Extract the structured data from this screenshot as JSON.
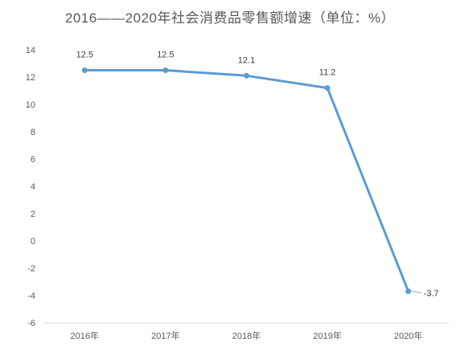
{
  "chart_data": {
    "type": "line",
    "title": "2016——2020年社会消费品零售额增速（单位：%）",
    "xlabel": "",
    "ylabel": "",
    "categories": [
      "2016年",
      "2017年",
      "2018年",
      "2019年",
      "2020年"
    ],
    "series": [
      {
        "values": [
          12.5,
          12.5,
          12.1,
          11.2,
          -3.7
        ],
        "data_labels": [
          "12.5",
          "12.5",
          "12.1",
          "11.2",
          "-3.7"
        ]
      }
    ],
    "ylim": [
      -6,
      14
    ],
    "yticks": [
      14,
      12,
      10,
      8,
      6,
      4,
      2,
      0,
      -2,
      -4,
      -6
    ],
    "grid": false,
    "legend": "none",
    "colors": {
      "line": "#5b9bd5",
      "axis": "#d9d9d9",
      "text": "#595959"
    }
  }
}
